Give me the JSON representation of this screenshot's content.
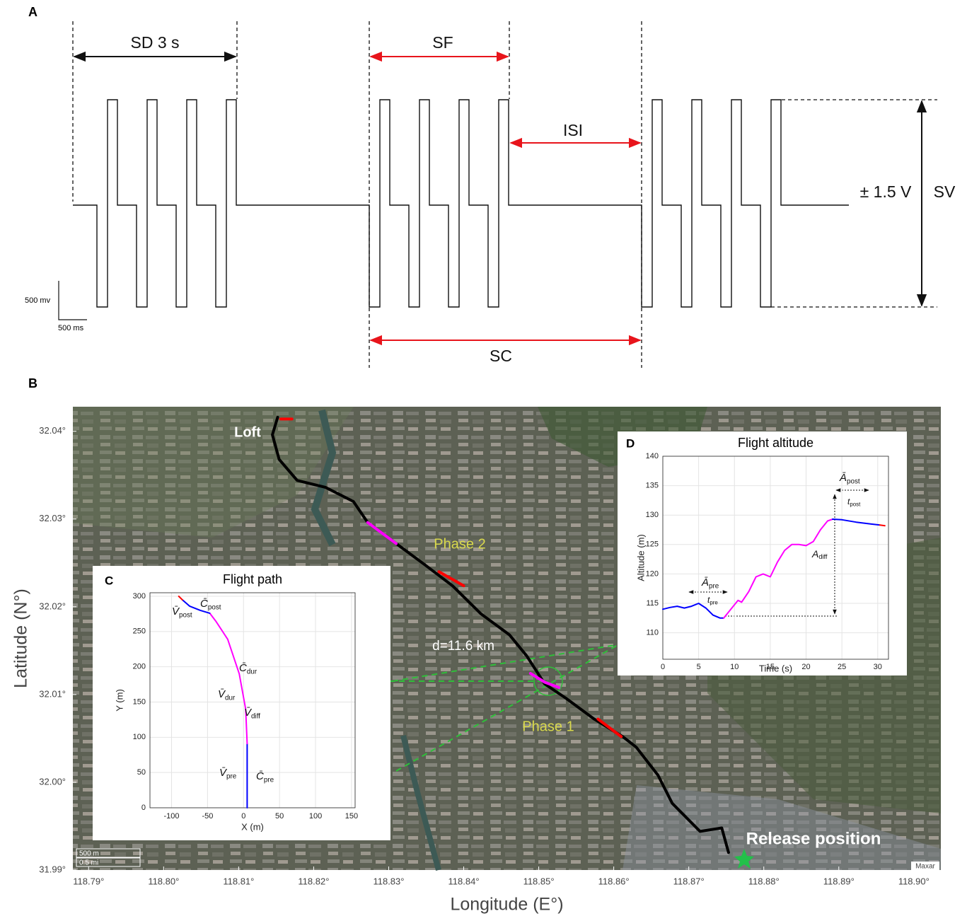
{
  "panel_labels": [
    "A",
    "B",
    "C",
    "D"
  ],
  "panel_a": {
    "sd": "SD 3 s",
    "sf": "SF",
    "isi": "ISI",
    "sc": "SC",
    "voltage": "± 1.5 V",
    "sv": "SV",
    "scale_y": "500 mv",
    "scale_x": "500 ms"
  },
  "chart_data": [
    {
      "type": "map",
      "xlabel": "Longitude (E°)",
      "ylabel": "Latitude (N°)",
      "xlim": [
        118.7879,
        118.9036
      ],
      "ylim": [
        31.99,
        32.0428
      ],
      "xticks": [
        {
          "value": 118.79,
          "label": "118.79°"
        },
        {
          "value": 118.8,
          "label": "118.80°"
        },
        {
          "value": 118.81,
          "label": "118.81°"
        },
        {
          "value": 118.82,
          "label": "118.82°"
        },
        {
          "value": 118.83,
          "label": "118.83°"
        },
        {
          "value": 118.84,
          "label": "118.84°"
        },
        {
          "value": 118.85,
          "label": "118.85°"
        },
        {
          "value": 118.86,
          "label": "118.86°"
        },
        {
          "value": 118.87,
          "label": "118.87°"
        },
        {
          "value": 118.88,
          "label": "118.88°"
        },
        {
          "value": 118.89,
          "label": "118.89°"
        },
        {
          "value": 118.9,
          "label": "118.90°"
        }
      ],
      "yticks": [
        {
          "value": 31.99,
          "label": "31.99°"
        },
        {
          "value": 32.0,
          "label": "32.00°"
        },
        {
          "value": 32.01,
          "label": "32.01°"
        },
        {
          "value": 32.02,
          "label": "32.02°"
        },
        {
          "value": 32.03,
          "label": "32.03°"
        },
        {
          "value": 32.04,
          "label": "32.04°"
        }
      ],
      "annotations": [
        "Loft",
        "Phase 2",
        "d=11.6 km",
        "Phase 1",
        "Release  position",
        "500 m",
        "0.5 mi",
        "Maxar"
      ],
      "series": [
        {
          "color": "#000000",
          "x": [
            118.8152,
            118.8145,
            118.8154,
            118.8178,
            118.8216,
            118.8253,
            118.8272,
            118.831,
            118.8348,
            118.8385,
            118.8423,
            118.8461,
            118.8484,
            118.8508,
            118.8536,
            118.8574,
            118.8612,
            118.863,
            118.8659,
            118.8678,
            118.8715,
            118.8744,
            118.8753
          ],
          "values": [
            32.0416,
            32.0396,
            32.0368,
            32.0344,
            32.0336,
            32.032,
            32.0296,
            32.0272,
            32.0248,
            32.0224,
            32.0192,
            32.0168,
            32.0144,
            32.0112,
            32.0096,
            32.0072,
            32.0052,
            32.004,
            32.0008,
            31.9976,
            31.9944,
            31.9948,
            31.992
          ]
        },
        {
          "color": "#ff00ff",
          "x": [
            118.8272,
            118.8291,
            118.831
          ],
          "values": [
            32.0296,
            32.0284,
            32.0272
          ]
        },
        {
          "color": "#ff00ff",
          "x": [
            118.8489,
            118.8508,
            118.8527
          ],
          "values": [
            32.0124,
            32.0114,
            32.0108
          ]
        },
        {
          "color": "#ff0000",
          "x": [
            118.8367,
            118.84
          ],
          "values": [
            32.024,
            32.0224
          ]
        },
        {
          "color": "#ff0000",
          "x": [
            118.8579,
            118.861
          ],
          "values": [
            32.0072,
            32.0052
          ]
        },
        {
          "color": "#ff0000",
          "x": [
            118.8156,
            118.8171
          ],
          "values": [
            32.0414,
            32.0414
          ]
        }
      ]
    },
    {
      "type": "line",
      "title": "Flight path",
      "xlabel": "X (m)",
      "ylabel": "Y (m)",
      "grid": true,
      "xlim": [
        -130,
        155
      ],
      "ylim": [
        0,
        305
      ],
      "xticks": [
        -100,
        -50,
        0,
        50,
        100,
        150
      ],
      "yticks": [
        0,
        50,
        100,
        150,
        200,
        250,
        300
      ],
      "annotations": [
        {
          "symbol": "V̄",
          "sub": "post"
        },
        {
          "symbol": "C̄",
          "sub": "post"
        },
        {
          "symbol": "C̄",
          "sub": "dur"
        },
        {
          "symbol": "V̄",
          "sub": "dur"
        },
        {
          "symbol": "V̄",
          "sub": "diff"
        },
        {
          "symbol": "V̄",
          "sub": "pre"
        },
        {
          "symbol": "C̄",
          "sub": "pre"
        }
      ],
      "series": [
        {
          "color": "#0000ff",
          "x": [
            5,
            5
          ],
          "values": [
            0,
            91
          ]
        },
        {
          "color": "#ff00ff",
          "x": [
            5,
            3,
            -6,
            -22,
            -38,
            -47
          ],
          "values": [
            91,
            140,
            190,
            239,
            264,
            276
          ]
        },
        {
          "color": "#0000ff",
          "x": [
            -47,
            -60,
            -75,
            -85
          ],
          "values": [
            276,
            280,
            286,
            295
          ]
        },
        {
          "color": "#ff0000",
          "x": [
            -85,
            -90
          ],
          "values": [
            295,
            300
          ]
        }
      ]
    },
    {
      "type": "line",
      "title": "Flight altitude",
      "xlabel": "Time (s)",
      "ylabel": "Altitude (m)",
      "grid": true,
      "xlim": [
        0,
        31.5
      ],
      "ylim": [
        105.5,
        140
      ],
      "xticks": [
        0,
        5,
        10,
        15,
        20,
        25,
        30
      ],
      "yticks": [
        110,
        115,
        120,
        125,
        130,
        135,
        140
      ],
      "annotations": [
        {
          "symbol": "Ā",
          "sub": "post"
        },
        {
          "symbol": "t",
          "sub": "post"
        },
        {
          "symbol": "A",
          "sub": "diff"
        },
        {
          "symbol": "Ā",
          "sub": "pre"
        },
        {
          "symbol": "t",
          "sub": "pre"
        }
      ],
      "series": [
        {
          "color": "#0000ff",
          "x": [
            0,
            1,
            2,
            3,
            4,
            5,
            6,
            7,
            8,
            8.5
          ],
          "values": [
            114,
            114.3,
            114.5,
            114.2,
            114.5,
            115,
            114.2,
            113,
            112.5,
            112.5
          ]
        },
        {
          "color": "#ff00ff",
          "x": [
            8.5,
            9.5,
            10.5,
            11,
            12,
            13,
            14,
            15,
            16,
            17,
            18,
            19,
            20,
            21,
            22,
            23,
            23.7
          ],
          "values": [
            112.5,
            114,
            115.5,
            115.2,
            117,
            119.5,
            120,
            119.5,
            122,
            124,
            125,
            125,
            124.8,
            125.5,
            127.5,
            129,
            129.3
          ]
        },
        {
          "color": "#0000ff",
          "x": [
            23.7,
            25,
            27,
            29,
            30.3
          ],
          "values": [
            129.3,
            129.2,
            128.8,
            128.5,
            128.3
          ]
        },
        {
          "color": "#ff0000",
          "x": [
            30.3,
            31
          ],
          "values": [
            128.3,
            128.2
          ]
        }
      ]
    }
  ]
}
